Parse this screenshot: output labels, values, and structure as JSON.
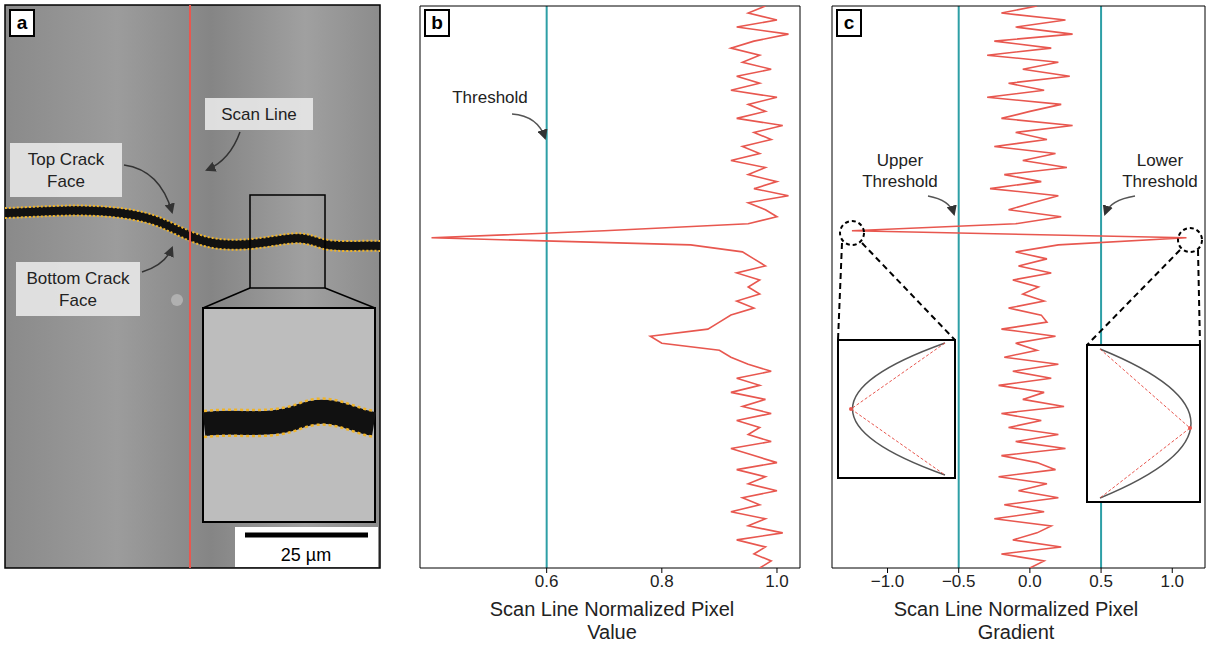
{
  "image": {
    "label": "a",
    "scan_line": "Scan Line",
    "top_face": "Top Crack Face",
    "bottom_face": "Bottom Crack Face",
    "scale_bar": "25 µm"
  },
  "chart_data": [
    {
      "label": "b",
      "type": "line",
      "x_label": "Scan Line Normalized Pixel Value",
      "color": "#e8574f",
      "tick_labels": "x",
      "xlim": [
        0.38,
        1.04
      ],
      "xticks": [
        0.6,
        0.8,
        {
          "value": 1,
          "label": "1.0"
        }
      ],
      "ylim": [
        0,
        80
      ],
      "yticks": [],
      "thresholds": [
        {
          "label": "Threshold",
          "value": 0.6,
          "color": "#2e9fa6"
        }
      ],
      "y": [
        80,
        79,
        78,
        77,
        76,
        75,
        74,
        73,
        72,
        71,
        70,
        69,
        68,
        67,
        66,
        65,
        64,
        63,
        62,
        61,
        60,
        59,
        58,
        57,
        56,
        55,
        54,
        53,
        52,
        51,
        50,
        49,
        48,
        47,
        46,
        45,
        44,
        43,
        42,
        41,
        40,
        39,
        38,
        37,
        36,
        35,
        34,
        33,
        32,
        31,
        30,
        29,
        28,
        27,
        26,
        25,
        24,
        23,
        22,
        21,
        20,
        19,
        18,
        17,
        16,
        15,
        14,
        13,
        12,
        11,
        10,
        9,
        8,
        7,
        6,
        5,
        4,
        3,
        2,
        1,
        0
      ],
      "x": [
        0.98,
        0.95,
        1.0,
        0.93,
        1.02,
        0.96,
        0.92,
        0.97,
        0.94,
        0.99,
        0.93,
        0.97,
        0.92,
        1.0,
        0.95,
        0.98,
        0.93,
        1.01,
        0.96,
        0.99,
        0.94,
        0.97,
        0.92,
        0.98,
        0.95,
        1.0,
        0.96,
        1.02,
        0.95,
        0.98,
        1.0,
        0.95,
        0.7,
        0.4,
        0.85,
        0.94,
        0.96,
        0.98,
        0.93,
        0.97,
        0.95,
        0.97,
        0.93,
        0.96,
        0.92,
        0.9,
        0.88,
        0.78,
        0.8,
        0.9,
        0.92,
        0.95,
        0.99,
        0.93,
        0.97,
        0.92,
        0.98,
        0.94,
        0.99,
        0.93,
        0.97,
        0.95,
        0.99,
        0.92,
        0.96,
        1.0,
        0.93,
        0.98,
        0.95,
        1.0,
        0.94,
        0.97,
        0.92,
        0.98,
        0.95,
        1.01,
        0.93,
        0.98,
        0.96,
        0.99,
        0.97
      ]
    },
    {
      "label": "c",
      "type": "line",
      "x_label": "Scan Line Normalized Pixel Gradient",
      "color": "#e8574f",
      "tick_labels": "x",
      "xlim": [
        -1.39,
        1.23
      ],
      "xticks": [
        {
          "value": -1,
          "label": "−1.0"
        },
        {
          "value": -0.5,
          "label": "−0.5"
        },
        {
          "value": 0,
          "label": "0.0"
        },
        0.5,
        {
          "value": 1,
          "label": "1.0"
        }
      ],
      "ylim": [
        0,
        80
      ],
      "yticks": [],
      "thresholds": [
        {
          "label": "Upper Threshold",
          "value": -0.5,
          "color": "#2e9fa6"
        },
        {
          "label": "Lower Threshold",
          "value": 0.5,
          "color": "#2e9fa6"
        }
      ],
      "y": [
        80,
        79,
        78,
        77,
        76,
        75,
        74,
        73,
        72,
        71,
        70,
        69,
        68,
        67,
        66,
        65,
        64,
        63,
        62,
        61,
        60,
        59,
        58,
        57,
        56,
        55,
        54,
        53,
        52,
        51,
        50,
        49,
        48,
        47,
        46,
        45,
        44,
        43,
        42,
        41,
        40,
        39,
        38,
        37,
        36,
        35,
        34,
        33,
        32,
        31,
        30,
        29,
        28,
        27,
        26,
        25,
        24,
        23,
        22,
        21,
        20,
        19,
        18,
        17,
        16,
        15,
        14,
        13,
        12,
        11,
        10,
        9,
        8,
        7,
        6,
        5,
        4,
        3,
        2,
        1,
        0
      ],
      "x": [
        0.05,
        -0.2,
        0.25,
        -0.1,
        0.3,
        -0.25,
        0.15,
        -0.3,
        0.2,
        -0.05,
        0.28,
        -0.15,
        0.1,
        -0.3,
        0.22,
        0.0,
        -0.2,
        0.3,
        -0.1,
        0.12,
        -0.25,
        0.18,
        -0.05,
        0.26,
        -0.18,
        0.08,
        -0.28,
        0.2,
        0.02,
        -0.15,
        0.22,
        -0.1,
        -1.25,
        1.1,
        0.2,
        -0.1,
        0.12,
        -0.08,
        0.15,
        -0.12,
        0.06,
        -0.05,
        0.1,
        -0.15,
        0.08,
        0.12,
        -0.2,
        0.18,
        -0.1,
        0.05,
        -0.18,
        0.2,
        -0.12,
        0.15,
        -0.22,
        0.1,
        -0.05,
        0.24,
        -0.2,
        0.08,
        -0.15,
        0.2,
        -0.1,
        0.25,
        -0.2,
        0.05,
        0.18,
        -0.22,
        0.12,
        -0.08,
        0.2,
        -0.18,
        0.1,
        -0.25,
        0.15,
        0.05,
        -0.12,
        0.22,
        -0.2,
        0.1,
        0.0
      ]
    }
  ]
}
